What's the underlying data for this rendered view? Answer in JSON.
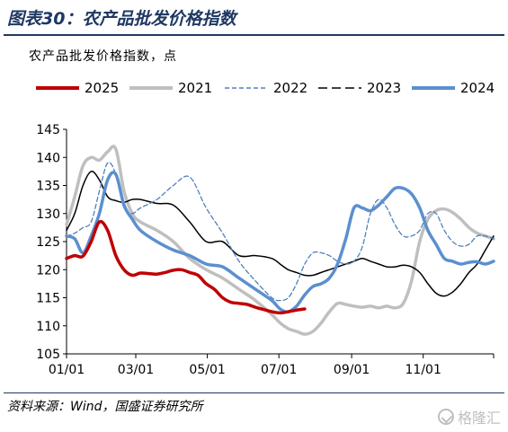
{
  "header": {
    "title": "图表30：农产品批发价格指数"
  },
  "source": "资料来源：Wind，国盛证券研究所",
  "watermark": "格隆汇",
  "colors": {
    "title": "#1f3864",
    "s2025": "#c00000",
    "s2021": "#bfbfbf",
    "s2022": "#4f81bd",
    "s2023": "#000000",
    "s2024": "#5b8fd0"
  },
  "chart_data": {
    "type": "line",
    "title": "",
    "subtitle": "农产品批发价格指数，点",
    "xlabel": "",
    "ylabel": "",
    "ylim": [
      105,
      145
    ],
    "yticks": [
      105,
      110,
      115,
      120,
      125,
      130,
      135,
      140,
      145
    ],
    "xlim": [
      "01/01",
      "12/31"
    ],
    "xticks": [
      "01/01",
      "03/01",
      "05/01",
      "07/01",
      "09/01",
      "11/01"
    ],
    "legend_position": "top",
    "grid": false,
    "series": [
      {
        "name": "2025",
        "style": "solid-thick",
        "color": "#c00000",
        "x": [
          "01/01",
          "01/08",
          "01/15",
          "01/22",
          "01/29",
          "02/05",
          "02/12",
          "02/19",
          "02/26",
          "03/05",
          "03/12",
          "03/19",
          "03/26",
          "04/02",
          "04/09",
          "04/16",
          "04/23",
          "04/30",
          "05/07",
          "05/14",
          "05/21",
          "05/28",
          "06/04",
          "06/11",
          "06/18",
          "06/25",
          "07/02",
          "07/09",
          "07/16",
          "07/23"
        ],
        "values": [
          122.0,
          122.5,
          122.4,
          125.0,
          128.5,
          127.0,
          122.5,
          120.0,
          119.0,
          119.4,
          119.3,
          119.2,
          119.5,
          119.9,
          120.0,
          119.5,
          119.0,
          117.5,
          116.5,
          115.0,
          114.2,
          114.0,
          113.8,
          113.3,
          112.9,
          112.5,
          112.3,
          112.5,
          112.8,
          113.0
        ]
      },
      {
        "name": "2021",
        "style": "solid-thick",
        "color": "#bfbfbf",
        "x": [
          "01/01",
          "01/08",
          "01/15",
          "01/22",
          "01/29",
          "02/05",
          "02/12",
          "02/19",
          "02/26",
          "03/05",
          "03/19",
          "04/02",
          "04/16",
          "04/30",
          "05/14",
          "05/28",
          "06/11",
          "06/25",
          "07/02",
          "07/09",
          "07/16",
          "07/23",
          "07/30",
          "08/06",
          "08/13",
          "08/20",
          "08/27",
          "09/03",
          "09/10",
          "09/17",
          "09/24",
          "10/01",
          "10/08",
          "10/15",
          "10/22",
          "10/29",
          "11/05",
          "11/12",
          "11/19",
          "11/26",
          "12/03",
          "12/10",
          "12/17",
          "12/24",
          "12/31"
        ],
        "values": [
          128.0,
          133.0,
          138.5,
          140.0,
          139.5,
          141.0,
          141.5,
          134.0,
          130.0,
          128.5,
          127.0,
          125.0,
          122.0,
          120.0,
          118.5,
          116.5,
          114.5,
          112.0,
          110.5,
          109.5,
          109.0,
          108.5,
          109.0,
          110.5,
          112.5,
          114.0,
          113.8,
          113.5,
          113.3,
          113.5,
          113.2,
          113.5,
          113.2,
          114.0,
          118.0,
          125.0,
          129.0,
          130.5,
          130.8,
          130.2,
          129.0,
          127.5,
          126.5,
          126.0,
          125.5
        ]
      },
      {
        "name": "2022",
        "style": "dashed",
        "color": "#4f81bd",
        "x": [
          "01/01",
          "01/08",
          "01/15",
          "01/22",
          "01/29",
          "02/05",
          "02/12",
          "02/19",
          "02/26",
          "03/05",
          "03/19",
          "04/02",
          "04/16",
          "04/30",
          "05/14",
          "05/28",
          "06/11",
          "06/25",
          "07/02",
          "07/09",
          "07/16",
          "07/23",
          "07/30",
          "08/06",
          "08/13",
          "08/20",
          "08/27",
          "09/03",
          "09/10",
          "09/17",
          "09/24",
          "10/01",
          "10/08",
          "10/15",
          "10/22",
          "10/29",
          "11/05",
          "11/12",
          "11/19",
          "11/26",
          "12/03",
          "12/10",
          "12/17",
          "12/24",
          "12/31"
        ],
        "values": [
          126.0,
          126.5,
          127.5,
          128.5,
          134.0,
          139.0,
          137.0,
          131.0,
          130.0,
          131.0,
          132.5,
          135.0,
          136.5,
          131.0,
          126.5,
          121.5,
          118.0,
          115.0,
          114.5,
          115.0,
          117.5,
          121.0,
          123.0,
          123.0,
          122.5,
          121.5,
          121.0,
          121.5,
          124.0,
          130.0,
          132.5,
          131.0,
          128.0,
          126.0,
          126.0,
          127.0,
          130.0,
          130.0,
          127.0,
          125.0,
          124.2,
          124.5,
          126.0,
          126.0,
          125.5
        ]
      },
      {
        "name": "2023",
        "style": "solid-thin",
        "color": "#000000",
        "x": [
          "01/01",
          "01/08",
          "01/15",
          "01/22",
          "01/29",
          "02/05",
          "02/12",
          "02/19",
          "02/26",
          "03/05",
          "03/19",
          "04/02",
          "04/16",
          "04/30",
          "05/14",
          "05/28",
          "06/11",
          "06/25",
          "07/02",
          "07/09",
          "07/16",
          "07/23",
          "07/30",
          "08/06",
          "08/13",
          "08/20",
          "08/27",
          "09/03",
          "09/10",
          "09/17",
          "09/24",
          "10/01",
          "10/08",
          "10/15",
          "10/22",
          "10/29",
          "11/05",
          "11/12",
          "11/19",
          "11/26",
          "12/03",
          "12/10",
          "12/17",
          "12/24",
          "12/31"
        ],
        "values": [
          127.0,
          130.0,
          135.0,
          137.5,
          136.0,
          133.0,
          132.3,
          132.0,
          132.5,
          132.5,
          131.8,
          131.5,
          128.5,
          125.0,
          125.0,
          122.5,
          122.5,
          122.0,
          121.0,
          120.0,
          119.5,
          119.0,
          119.0,
          119.5,
          120.0,
          120.5,
          121.0,
          121.5,
          122.0,
          121.5,
          121.0,
          120.5,
          120.5,
          120.8,
          120.5,
          119.5,
          117.5,
          115.8,
          115.3,
          116.0,
          117.5,
          119.5,
          121.0,
          123.5,
          126.0
        ]
      },
      {
        "name": "2024",
        "style": "solid-thick",
        "color": "#5b8fd0",
        "x": [
          "01/01",
          "01/08",
          "01/15",
          "01/22",
          "01/29",
          "02/05",
          "02/12",
          "02/19",
          "02/26",
          "03/05",
          "03/19",
          "04/02",
          "04/16",
          "04/30",
          "05/14",
          "05/28",
          "06/11",
          "06/25",
          "07/02",
          "07/09",
          "07/16",
          "07/23",
          "07/30",
          "08/06",
          "08/13",
          "08/20",
          "08/27",
          "09/03",
          "09/10",
          "09/17",
          "09/24",
          "10/01",
          "10/08",
          "10/15",
          "10/22",
          "10/29",
          "11/05",
          "11/12",
          "11/19",
          "11/26",
          "12/03",
          "12/10",
          "12/17",
          "12/24",
          "12/31"
        ],
        "values": [
          126.0,
          125.5,
          123.0,
          126.0,
          130.0,
          136.0,
          137.0,
          131.5,
          129.0,
          127.0,
          125.0,
          123.5,
          122.5,
          121.0,
          120.5,
          118.5,
          116.5,
          114.5,
          113.0,
          112.5,
          113.5,
          115.5,
          117.0,
          117.5,
          118.5,
          121.0,
          125.5,
          131.0,
          131.0,
          130.5,
          131.5,
          133.0,
          134.5,
          134.5,
          133.5,
          131.0,
          127.0,
          124.5,
          122.0,
          121.5,
          121.0,
          121.3,
          121.4,
          121.0,
          121.5
        ]
      }
    ]
  }
}
